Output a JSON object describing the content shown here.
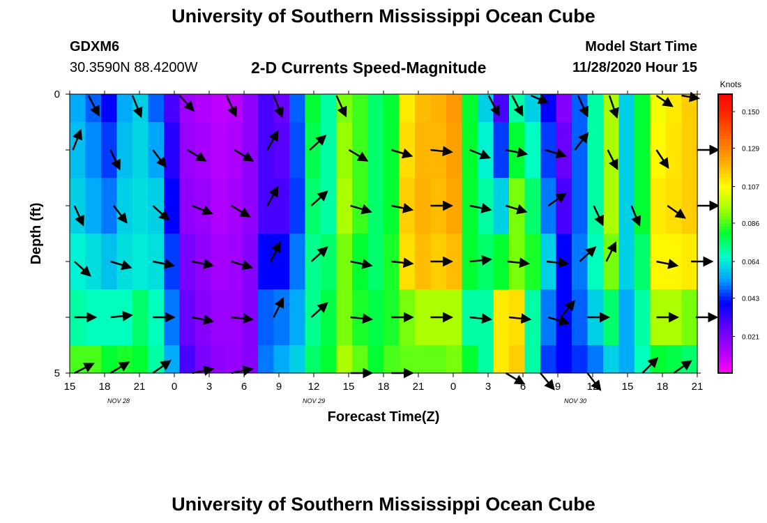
{
  "header": {
    "title": "University of Southern Mississippi Ocean Cube",
    "footer_title": "University of Southern Mississippi Ocean Cube",
    "station_id": "GDXM6",
    "station_coords": "30.3590N 88.4200W",
    "model_start_label": "Model Start Time",
    "model_start_value": "11/28/2020 Hour 15"
  },
  "chart_data": {
    "type": "heatmap",
    "title": "2-D Currents Speed-Magnitude",
    "xlabel": "Forecast Time(Z)",
    "ylabel": "Depth (ft)",
    "ylim": [
      0,
      5
    ],
    "y_ticks": [
      "0",
      "5"
    ],
    "x_tick_labels": [
      "15",
      "18",
      "21",
      "0",
      "3",
      "6",
      "9",
      "12",
      "15",
      "18",
      "21",
      "0",
      "3",
      "6",
      "9",
      "12",
      "15",
      "18",
      "21"
    ],
    "date_labels": [
      {
        "text": "NOV 28",
        "at_tick": 1.4
      },
      {
        "text": "NOV 29",
        "at_tick": 7
      },
      {
        "text": "NOV 30",
        "at_tick": 14.5
      }
    ],
    "colorbar": {
      "unit": "Knots",
      "ticks": [
        "0.150",
        "0.129",
        "0.107",
        "0.086",
        "0.064",
        "0.043",
        "0.021"
      ],
      "range": [
        0.0,
        0.16
      ]
    },
    "depth_layers": 5,
    "speed_knots": [
      [
        0.055,
        0.048,
        0.04,
        0.055,
        0.06,
        0.048,
        0.03,
        0.015,
        0.012,
        0.01,
        0.011,
        0.018,
        0.03,
        0.025,
        0.048,
        0.08,
        0.07,
        0.09,
        0.085,
        0.075,
        0.08,
        0.11,
        0.118,
        0.12,
        0.125,
        0.08,
        0.06,
        0.03,
        0.07,
        0.06,
        0.04,
        0.02,
        0.048,
        0.07,
        0.095,
        0.06,
        0.08,
        0.105,
        0.11,
        0.115
      ],
      [
        0.06,
        0.055,
        0.05,
        0.06,
        0.062,
        0.06,
        0.04,
        0.018,
        0.016,
        0.012,
        0.014,
        0.018,
        0.03,
        0.03,
        0.045,
        0.075,
        0.07,
        0.095,
        0.085,
        0.075,
        0.08,
        0.115,
        0.12,
        0.118,
        0.122,
        0.08,
        0.07,
        0.06,
        0.09,
        0.075,
        0.05,
        0.03,
        0.048,
        0.07,
        0.095,
        0.06,
        0.08,
        0.11,
        0.112,
        0.115
      ],
      [
        0.065,
        0.062,
        0.058,
        0.062,
        0.064,
        0.062,
        0.045,
        0.022,
        0.018,
        0.014,
        0.015,
        0.02,
        0.04,
        0.04,
        0.05,
        0.072,
        0.075,
        0.09,
        0.08,
        0.075,
        0.082,
        0.112,
        0.118,
        0.115,
        0.118,
        0.08,
        0.075,
        0.08,
        0.09,
        0.082,
        0.06,
        0.04,
        0.05,
        0.068,
        0.09,
        0.06,
        0.075,
        0.108,
        0.108,
        0.11
      ],
      [
        0.07,
        0.068,
        0.068,
        0.068,
        0.075,
        0.068,
        0.05,
        0.025,
        0.02,
        0.016,
        0.016,
        0.02,
        0.048,
        0.05,
        0.055,
        0.072,
        0.078,
        0.09,
        0.082,
        0.078,
        0.082,
        0.09,
        0.095,
        0.095,
        0.095,
        0.07,
        0.07,
        0.11,
        0.112,
        0.07,
        0.05,
        0.04,
        0.048,
        0.06,
        0.075,
        0.055,
        0.07,
        0.095,
        0.095,
        0.09
      ],
      [
        0.086,
        0.086,
        0.08,
        0.082,
        0.08,
        0.07,
        0.055,
        0.03,
        0.022,
        0.018,
        0.017,
        0.02,
        0.05,
        0.055,
        0.06,
        0.075,
        0.08,
        0.095,
        0.088,
        0.08,
        0.086,
        0.088,
        0.088,
        0.088,
        0.09,
        0.08,
        0.07,
        0.11,
        0.115,
        0.07,
        0.045,
        0.04,
        0.044,
        0.05,
        0.06,
        0.055,
        0.068,
        0.08,
        0.078,
        0.075
      ]
    ],
    "current_vectors": [
      {
        "row": 0,
        "arrows": [
          [
            1.2,
            1.3
          ],
          [
            4,
            1.7
          ],
          [
            7,
            0.7
          ],
          [
            10,
            -1.5
          ],
          [
            13,
            -1.7
          ],
          [
            17,
            1.5
          ],
          [
            26.7,
            1.3
          ],
          [
            28.2,
            -1.3
          ],
          [
            29.4,
            0.2
          ],
          [
            32.4,
            1.5
          ],
          [
            34.4,
            2
          ],
          [
            37.4,
            0.4
          ],
          [
            39,
            0
          ]
        ]
      },
      {
        "row": 1,
        "arrows": [
          [
            0.2,
            -2.5
          ],
          [
            2.6,
            2.1
          ],
          [
            5.3,
            1.3
          ],
          [
            7.5,
            0.6
          ],
          [
            10.5,
            0.6
          ],
          [
            12.6,
            -1.8
          ],
          [
            15.3,
            -0.9
          ],
          [
            17.8,
            0.6
          ],
          [
            20.5,
            0.3
          ],
          [
            23,
            0.1
          ],
          [
            25.5,
            0.4
          ],
          [
            27.8,
            0.2
          ],
          [
            30.3,
            0.3
          ],
          [
            32.2,
            -1.3
          ],
          [
            34.3,
            2
          ],
          [
            37.4,
            1.5
          ],
          [
            40,
            0
          ]
        ]
      },
      {
        "row": 2,
        "arrows": [
          [
            0.3,
            2.2
          ],
          [
            2.8,
            1.3
          ],
          [
            5.3,
            0.9
          ],
          [
            7.8,
            0.4
          ],
          [
            10.3,
            0.6
          ],
          [
            12.6,
            -1.8
          ],
          [
            15.4,
            -0.9
          ],
          [
            17.9,
            0.3
          ],
          [
            20.5,
            0.2
          ],
          [
            23,
            0
          ],
          [
            25.5,
            0.2
          ],
          [
            27.8,
            0.3
          ],
          [
            30.5,
            -0.7
          ],
          [
            33.4,
            2.1
          ],
          [
            35.8,
            2.4
          ],
          [
            38.1,
            0.7
          ],
          [
            40,
            0
          ]
        ]
      },
      {
        "row": 3,
        "arrows": [
          [
            0.3,
            0.9
          ],
          [
            2.6,
            0.3
          ],
          [
            5.3,
            0.2
          ],
          [
            7.8,
            0.2
          ],
          [
            10.3,
            0.3
          ],
          [
            12.8,
            -2
          ],
          [
            15.4,
            -0.9
          ],
          [
            17.9,
            0.2
          ],
          [
            20.5,
            0.1
          ],
          [
            23,
            0
          ],
          [
            25.5,
            -0.1
          ],
          [
            27.9,
            0.1
          ],
          [
            30.4,
            0.1
          ],
          [
            32.5,
            -0.9
          ],
          [
            34.2,
            -2
          ],
          [
            37.4,
            0.2
          ],
          [
            39.6,
            0
          ]
        ]
      },
      {
        "row": 4,
        "arrows": [
          [
            0.3,
            0
          ],
          [
            2.6,
            -0.1
          ],
          [
            5.3,
            0
          ],
          [
            7.8,
            0.2
          ],
          [
            10.3,
            0.1
          ],
          [
            13,
            -2
          ],
          [
            15.4,
            -0.9
          ],
          [
            17.9,
            0.1
          ],
          [
            20.5,
            0
          ],
          [
            23,
            0
          ],
          [
            25.5,
            0.1
          ],
          [
            28,
            0.1
          ],
          [
            30.5,
            0.3
          ],
          [
            31.3,
            -1.2
          ],
          [
            33,
            0
          ],
          [
            37.4,
            0
          ],
          [
            39.9,
            0
          ]
        ]
      },
      {
        "row": 5,
        "arrows": [
          [
            0.3,
            -0.5
          ],
          [
            2.6,
            -0.6
          ],
          [
            5.3,
            -0.7
          ],
          [
            7.8,
            -0.2
          ],
          [
            10.3,
            -0.2
          ],
          [
            17.9,
            0
          ],
          [
            20.5,
            0
          ],
          [
            27.8,
            0.6
          ],
          [
            30,
            1.2
          ],
          [
            33,
            1.3
          ],
          [
            36.5,
            -1
          ],
          [
            38.5,
            -0.7
          ]
        ]
      }
    ]
  },
  "palette": {
    "colorbar_stops": [
      "#ff00ff",
      "#a900ff",
      "#6000ff",
      "#0000ff",
      "#00a0ff",
      "#00ffcc",
      "#00ff30",
      "#a0ff00",
      "#ffff00",
      "#ffb000",
      "#ff7000",
      "#ff3000",
      "#ff0000"
    ]
  }
}
